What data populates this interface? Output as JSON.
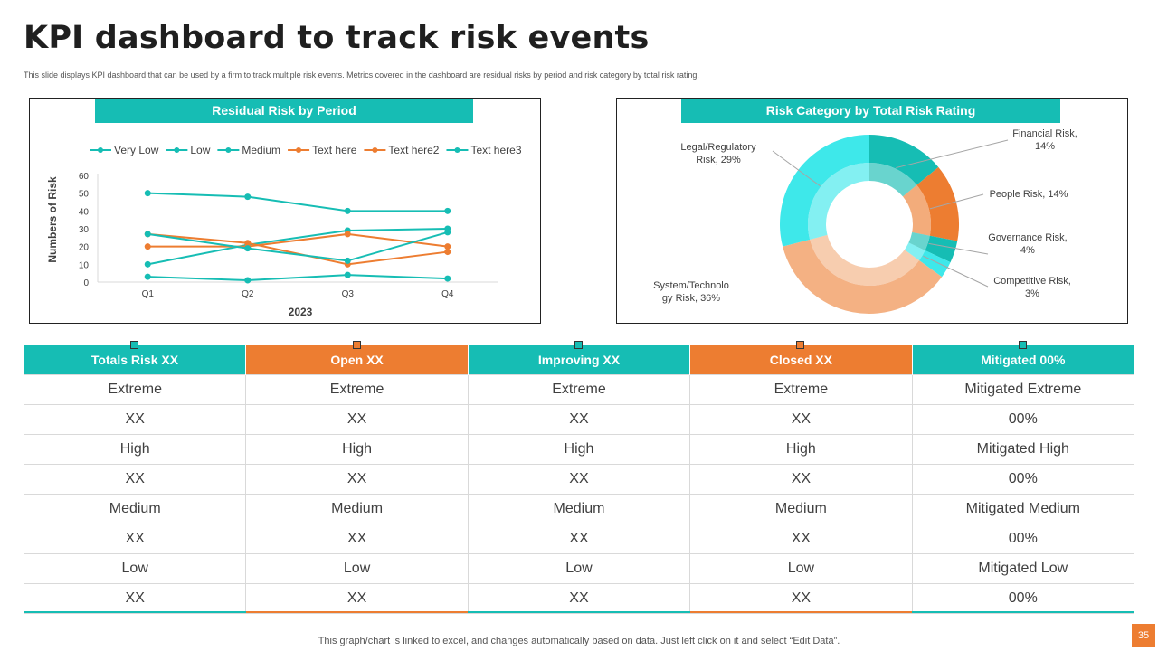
{
  "title": "KPI dashboard to track risk events",
  "subtitle": "This slide displays KPI dashboard that can be used by a firm to track multiple  risk events. Metrics covered in the dashboard are residual risks by period and risk category by total risk rating.",
  "colors": {
    "teal": "#16bdb4",
    "orange": "#ed7d31"
  },
  "chart_data": [
    {
      "type": "line",
      "title": "Residual Risk by Period",
      "xlabel": "2023",
      "ylabel": "Numbers of Risk",
      "categories": [
        "Q1",
        "Q2",
        "Q3",
        "Q4"
      ],
      "ylim": [
        0,
        60
      ],
      "yticks": [
        0,
        10,
        20,
        30,
        40,
        50,
        60
      ],
      "legend_position": "top",
      "series": [
        {
          "name": "Very Low",
          "color": "#16bdb4",
          "values": [
            50,
            48,
            40,
            40
          ]
        },
        {
          "name": "Low",
          "color": "#16bdb4",
          "values": [
            10,
            21,
            29,
            30
          ]
        },
        {
          "name": "Medium",
          "color": "#16bdb4",
          "values": [
            3,
            1,
            4,
            2
          ]
        },
        {
          "name": "Text here",
          "color": "#ed7d31",
          "values": [
            27,
            22,
            10,
            17
          ]
        },
        {
          "name": "Text here2",
          "color": "#ed7d31",
          "values": [
            20,
            20,
            27,
            20
          ]
        },
        {
          "name": "Text here3",
          "color": "#16bdb4",
          "values": [
            27,
            19,
            12,
            28
          ]
        }
      ]
    },
    {
      "type": "pie",
      "variant": "donut",
      "title": "Risk Category by Total Risk Rating",
      "slices": [
        {
          "name": "Financial Risk",
          "value": 14,
          "label_line1": "Financial Risk,",
          "label_line2": "14%",
          "color": "#16bdb4"
        },
        {
          "name": "People Risk",
          "value": 14,
          "label_line1": "People Risk, 14%",
          "label_line2": "",
          "color": "#ed7d31"
        },
        {
          "name": "Governance Risk",
          "value": 4,
          "label_line1": "Governance Risk,",
          "label_line2": "4%",
          "color": "#16bdb4"
        },
        {
          "name": "Competitive Risk",
          "value": 3,
          "label_line1": "Competitive Risk,",
          "label_line2": "3%",
          "color": "#3ee8ea"
        },
        {
          "name": "System/Technology Risk",
          "value": 36,
          "label_line1": "System/Technolo",
          "label_line2": "gy Risk, 36%",
          "color": "#f4b183"
        },
        {
          "name": "Legal/Regulatory Risk",
          "value": 29,
          "label_line1": "Legal/Regulatory",
          "label_line2": "Risk, 29%",
          "color": "#3ee8ea"
        }
      ]
    }
  ],
  "table": {
    "headers": [
      "Totals Risk XX",
      "Open XX",
      "Improving XX",
      "Closed XX",
      "Mitigated 00%"
    ],
    "rows": [
      [
        "Extreme",
        "Extreme",
        "Extreme",
        "Extreme",
        "Mitigated Extreme"
      ],
      [
        "XX",
        "XX",
        "XX",
        "XX",
        "00%"
      ],
      [
        "High",
        "High",
        "High",
        "High",
        "Mitigated High"
      ],
      [
        "XX",
        "XX",
        "XX",
        "XX",
        "00%"
      ],
      [
        "Medium",
        "Medium",
        "Medium",
        "Medium",
        "Mitigated Medium"
      ],
      [
        "XX",
        "XX",
        "XX",
        "XX",
        "00%"
      ],
      [
        "Low",
        "Low",
        "Low",
        "Low",
        "Mitigated Low"
      ],
      [
        "XX",
        "XX",
        "XX",
        "XX",
        "00%"
      ]
    ]
  },
  "footer": "This graph/chart is linked to excel,  and changes automatically based on data. Just left click on it and select “Edit Data”.",
  "page_number": "35"
}
